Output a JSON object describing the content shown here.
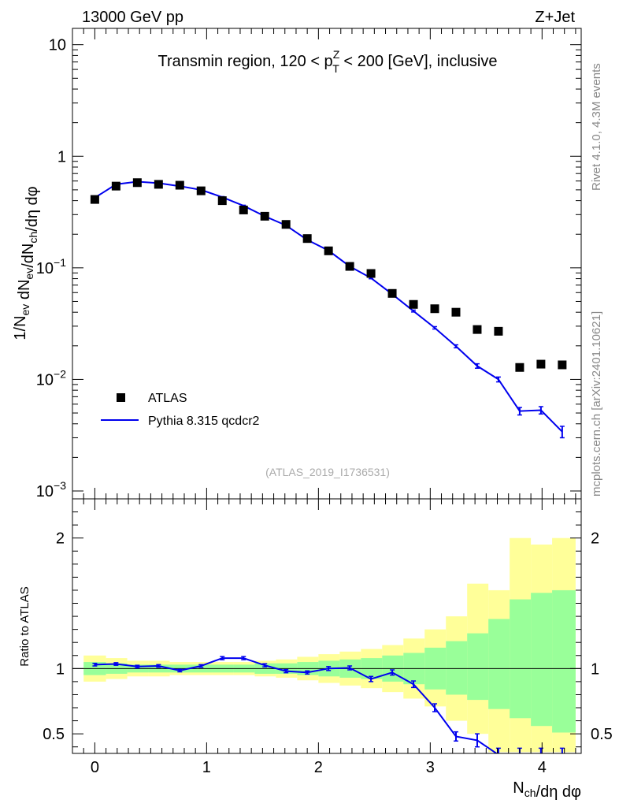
{
  "header": {
    "left": "13000 GeV pp",
    "right": "Z+Jet"
  },
  "side_labels": {
    "top": "Rivet 4.1.0,  4.3M events",
    "bottom": "mcplots.cern.ch [arXiv:2401.10621]"
  },
  "chart_data": [
    {
      "type": "scatter",
      "panel": "main",
      "title": "Transmin region, 120 < p_T^Z < 200 [GeV], inclusive",
      "ylabel": "1/N_ev dN_ev/dN_ch/dη dφ",
      "yscale": "log",
      "ylim": [
        0.00085,
        14
      ],
      "xlim": [
        -0.2,
        4.35
      ],
      "y_tick_labels": [
        "10",
        "1",
        "10⁻¹",
        "10⁻²",
        "10⁻³"
      ],
      "watermark": "(ATLAS_2019_I1736531)",
      "legend": [
        "ATLAS",
        "Pythia 8.315 qcdcr2"
      ],
      "legend_position": "lower-left",
      "series": [
        {
          "name": "ATLAS",
          "color": "#000000",
          "x": [
            0.0,
            0.19,
            0.38,
            0.57,
            0.76,
            0.95,
            1.14,
            1.33,
            1.52,
            1.71,
            1.9,
            2.09,
            2.28,
            2.47,
            2.66,
            2.85,
            3.04,
            3.23,
            3.42,
            3.61,
            3.8,
            3.99,
            4.18
          ],
          "y": [
            0.41,
            0.54,
            0.58,
            0.56,
            0.55,
            0.49,
            0.4,
            0.33,
            0.29,
            0.245,
            0.183,
            0.142,
            0.103,
            0.089,
            0.059,
            0.047,
            0.043,
            0.04,
            0.028,
            0.027,
            0.0128,
            0.0137,
            0.0135
          ]
        },
        {
          "name": "Pythia 8.315 qcdcr2",
          "color": "#0000ee",
          "x": [
            0.0,
            0.19,
            0.38,
            0.57,
            0.76,
            0.95,
            1.14,
            1.33,
            1.52,
            1.71,
            1.9,
            2.09,
            2.28,
            2.47,
            2.66,
            2.85,
            3.04,
            3.23,
            3.42,
            3.61,
            3.8,
            3.99,
            4.18
          ],
          "y": [
            0.425,
            0.56,
            0.592,
            0.574,
            0.54,
            0.5,
            0.43,
            0.36,
            0.29,
            0.24,
            0.178,
            0.143,
            0.103,
            0.081,
            0.058,
            0.041,
            0.029,
            0.0198,
            0.0132,
            0.01,
            0.0052,
            0.0053,
            0.0034
          ],
          "yerr": [
            0.006,
            0.006,
            0.006,
            0.006,
            0.006,
            0.005,
            0.005,
            0.004,
            0.004,
            0.003,
            0.002,
            0.002,
            0.0015,
            0.0012,
            0.001,
            0.0008,
            0.0007,
            0.0006,
            0.0006,
            0.0005,
            0.0004,
            0.0004,
            0.0004
          ]
        }
      ]
    },
    {
      "type": "line",
      "panel": "ratio",
      "ylabel": "Ratio to ATLAS",
      "xlabel": "N_ch/dη dφ",
      "ylim": [
        0.35,
        2.3
      ],
      "xlim": [
        -0.2,
        4.35
      ],
      "y_ticks": [
        0.5,
        1,
        2
      ],
      "y_tick_labels": [
        "0.5",
        "1",
        "2"
      ],
      "x_tick_labels": [
        "0",
        "1",
        "2",
        "3",
        "4"
      ],
      "bin_edges": [
        -0.1,
        0.1,
        0.29,
        0.48,
        0.67,
        0.86,
        1.05,
        1.24,
        1.43,
        1.62,
        1.81,
        2.0,
        2.19,
        2.38,
        2.57,
        2.76,
        2.95,
        3.14,
        3.33,
        3.52,
        3.71,
        3.9,
        4.09,
        4.3
      ],
      "band_stat_lo": [
        0.95,
        0.96,
        0.97,
        0.97,
        0.97,
        0.97,
        0.97,
        0.97,
        0.96,
        0.96,
        0.95,
        0.94,
        0.93,
        0.92,
        0.9,
        0.88,
        0.84,
        0.8,
        0.76,
        0.69,
        0.62,
        0.56,
        0.51
      ],
      "band_stat_hi": [
        1.05,
        1.04,
        1.03,
        1.03,
        1.03,
        1.03,
        1.03,
        1.03,
        1.04,
        1.04,
        1.05,
        1.06,
        1.07,
        1.08,
        1.1,
        1.12,
        1.16,
        1.21,
        1.27,
        1.38,
        1.53,
        1.58,
        1.6
      ],
      "band_total_lo": [
        0.9,
        0.92,
        0.94,
        0.94,
        0.95,
        0.95,
        0.95,
        0.95,
        0.94,
        0.93,
        0.91,
        0.89,
        0.87,
        0.85,
        0.82,
        0.77,
        0.71,
        0.6,
        0.5,
        0.36,
        0.36,
        0.36,
        0.36
      ],
      "band_total_hi": [
        1.1,
        1.08,
        1.06,
        1.06,
        1.05,
        1.05,
        1.05,
        1.05,
        1.06,
        1.07,
        1.09,
        1.11,
        1.13,
        1.15,
        1.18,
        1.23,
        1.3,
        1.4,
        1.65,
        1.6,
        2.0,
        1.95,
        2.0
      ],
      "series": [
        {
          "name": "Pythia 8.315 qcdcr2",
          "color": "#0000ee",
          "x": [
            0.0,
            0.19,
            0.38,
            0.57,
            0.76,
            0.95,
            1.14,
            1.33,
            1.52,
            1.71,
            1.9,
            2.09,
            2.28,
            2.47,
            2.66,
            2.85,
            3.04,
            3.23,
            3.42,
            3.61,
            3.8,
            3.99,
            4.18
          ],
          "y": [
            1.03,
            1.035,
            1.015,
            1.02,
            0.985,
            1.02,
            1.08,
            1.08,
            1.025,
            0.98,
            0.97,
            1.0,
            1.005,
            0.92,
            0.97,
            0.88,
            0.7,
            0.48,
            0.45,
            0.34,
            0.34,
            0.34,
            0.34
          ],
          "yerr": [
            0.01,
            0.01,
            0.01,
            0.01,
            0.01,
            0.01,
            0.012,
            0.012,
            0.012,
            0.012,
            0.012,
            0.015,
            0.015,
            0.02,
            0.02,
            0.025,
            0.03,
            0.035,
            0.05,
            0.05,
            0.05,
            0.05,
            0.05
          ]
        }
      ]
    }
  ]
}
